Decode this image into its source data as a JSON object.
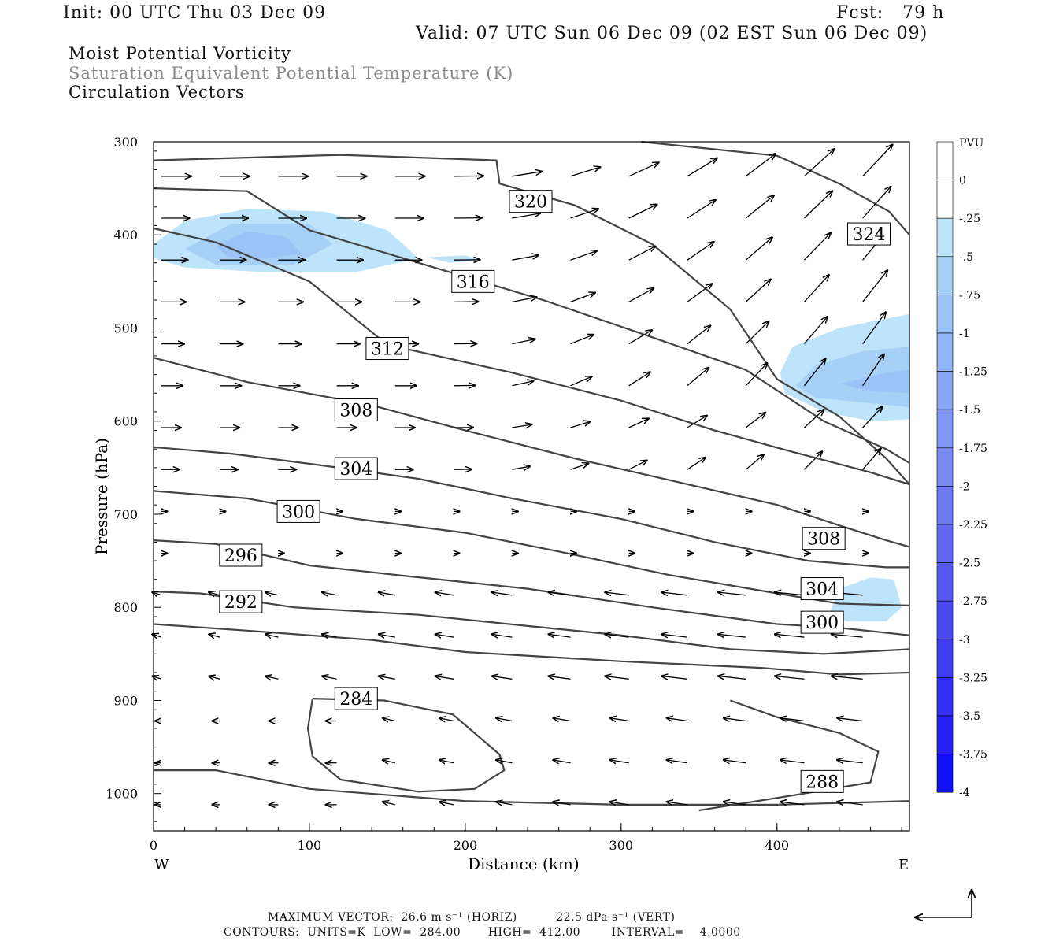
{
  "header": {
    "init": "Init: 00 UTC Thu 03 Dec 09",
    "fcst": "Fcst:   79 h",
    "valid": "Valid: 07 UTC Sun 06 Dec 09 (02 EST Sun 06 Dec 09)"
  },
  "fields": {
    "mpv": "Moist Potential Vorticity",
    "theta": "Saturation Equivalent Potential Temperature (K)",
    "vectors": "Circulation Vectors"
  },
  "chart_data": {
    "type": "contour",
    "xlabel": "Distance (km)",
    "ylabel": "Pressure (hPa)",
    "xlim": [
      0,
      485
    ],
    "ylim": [
      1040,
      300
    ],
    "x_ticks": [
      0,
      100,
      200,
      300,
      400
    ],
    "y_ticks": [
      300,
      400,
      500,
      600,
      700,
      800,
      900,
      1000
    ],
    "x_end_labels": {
      "left": "W",
      "right": "E"
    },
    "colorbar": {
      "title": "PVU",
      "levels": [
        "0",
        "-.25",
        "-.5",
        "-.75",
        "-1",
        "-1.25",
        "-1.5",
        "-1.75",
        "-2",
        "-2.25",
        "-2.5",
        "-2.75",
        "-3",
        "-3.25",
        "-3.5",
        "-3.75",
        "-4"
      ],
      "colors": [
        "#ffffff",
        "#ffffff",
        "#bde4fa",
        "#a7d0f7",
        "#9cc3f7",
        "#92b5f7",
        "#8aa7f5",
        "#8197f5",
        "#7a8af5",
        "#6e7bf5",
        "#626af5",
        "#5659f5",
        "#4a4af5",
        "#3e3cf5",
        "#322ef5",
        "#2620f5",
        "#1010f8"
      ]
    },
    "contour_labels": [
      {
        "text": "320",
        "x": 242,
        "p": 364
      },
      {
        "text": "324",
        "x": 459,
        "p": 399
      },
      {
        "text": "316",
        "x": 205,
        "p": 450
      },
      {
        "text": "312",
        "x": 150,
        "p": 522
      },
      {
        "text": "308",
        "x": 130,
        "p": 588
      },
      {
        "text": "304",
        "x": 130,
        "p": 651
      },
      {
        "text": "300",
        "x": 93,
        "p": 697
      },
      {
        "text": "296",
        "x": 56,
        "p": 744
      },
      {
        "text": "292",
        "x": 56,
        "p": 794
      },
      {
        "text": "284",
        "x": 130,
        "p": 898
      },
      {
        "text": "308",
        "x": 430,
        "p": 726
      },
      {
        "text": "304",
        "x": 429,
        "p": 780
      },
      {
        "text": "300",
        "x": 429,
        "p": 816
      },
      {
        "text": "288",
        "x": 429,
        "p": 987
      }
    ],
    "contours": [
      {
        "level": 324,
        "points": [
          [
            313,
            300
          ],
          [
            400,
            315
          ],
          [
            440,
            345
          ],
          [
            472,
            375
          ],
          [
            485,
            400
          ]
        ]
      },
      {
        "level": 320,
        "points": [
          [
            0,
            320
          ],
          [
            120,
            314
          ],
          [
            220,
            320
          ],
          [
            222,
            345
          ],
          [
            270,
            368
          ],
          [
            320,
            410
          ],
          [
            370,
            480
          ],
          [
            400,
            555
          ],
          [
            440,
            595
          ],
          [
            470,
            640
          ],
          [
            485,
            668
          ]
        ]
      },
      {
        "level": 316,
        "points": [
          [
            0,
            350
          ],
          [
            60,
            353
          ],
          [
            100,
            395
          ],
          [
            160,
            425
          ],
          [
            250,
            470
          ],
          [
            320,
            510
          ],
          [
            380,
            545
          ],
          [
            430,
            600
          ],
          [
            470,
            630
          ],
          [
            485,
            645
          ]
        ]
      },
      {
        "level": 312,
        "points": [
          [
            0,
            393
          ],
          [
            40,
            408
          ],
          [
            100,
            450
          ],
          [
            150,
            518
          ],
          [
            230,
            548
          ],
          [
            300,
            578
          ],
          [
            360,
            610
          ],
          [
            410,
            633
          ],
          [
            460,
            655
          ],
          [
            485,
            668
          ]
        ]
      },
      {
        "level": 308,
        "points": [
          [
            0,
            532
          ],
          [
            60,
            558
          ],
          [
            140,
            583
          ],
          [
            200,
            610
          ],
          [
            270,
            640
          ],
          [
            330,
            663
          ],
          [
            400,
            690
          ],
          [
            440,
            712
          ],
          [
            470,
            728
          ],
          [
            485,
            735
          ]
        ]
      },
      {
        "level": 304,
        "points": [
          [
            0,
            628
          ],
          [
            50,
            635
          ],
          [
            110,
            648
          ],
          [
            170,
            662
          ],
          [
            230,
            683
          ],
          [
            300,
            705
          ],
          [
            360,
            730
          ],
          [
            420,
            750
          ],
          [
            470,
            757
          ],
          [
            485,
            757
          ]
        ]
      },
      {
        "level": 300,
        "points": [
          [
            0,
            675
          ],
          [
            60,
            683
          ],
          [
            130,
            705
          ],
          [
            200,
            720
          ],
          [
            260,
            740
          ],
          [
            330,
            765
          ],
          [
            400,
            785
          ],
          [
            440,
            796
          ],
          [
            485,
            798
          ]
        ]
      },
      {
        "level": 296,
        "points": [
          [
            0,
            728
          ],
          [
            40,
            732
          ],
          [
            100,
            755
          ],
          [
            160,
            766
          ],
          [
            240,
            780
          ],
          [
            320,
            800
          ],
          [
            400,
            818
          ],
          [
            440,
            822
          ],
          [
            485,
            830
          ]
        ]
      },
      {
        "level": 292,
        "points": [
          [
            0,
            783
          ],
          [
            30,
            785
          ],
          [
            90,
            800
          ],
          [
            170,
            808
          ],
          [
            240,
            820
          ],
          [
            300,
            830
          ],
          [
            370,
            845
          ],
          [
            430,
            850
          ],
          [
            485,
            845
          ]
        ]
      },
      {
        "level": 288,
        "points": [
          [
            0,
            818
          ],
          [
            60,
            825
          ],
          [
            140,
            835
          ],
          [
            200,
            848
          ],
          [
            300,
            858
          ],
          [
            390,
            865
          ],
          [
            440,
            872
          ],
          [
            485,
            870
          ]
        ]
      },
      {
        "level": 288,
        "points": [
          [
            350,
            1018
          ],
          [
            410,
            1002
          ],
          [
            460,
            988
          ],
          [
            465,
            955
          ],
          [
            440,
            935
          ],
          [
            400,
            918
          ],
          [
            370,
            900
          ]
        ]
      },
      {
        "level": 284,
        "points": [
          [
            102,
            898
          ],
          [
            148,
            900
          ],
          [
            192,
            915
          ],
          [
            222,
            958
          ],
          [
            225,
            975
          ],
          [
            206,
            995
          ],
          [
            170,
            998
          ],
          [
            120,
            985
          ],
          [
            102,
            960
          ],
          [
            99,
            930
          ],
          [
            102,
            898
          ]
        ]
      },
      {
        "level": 292,
        "points": [
          [
            0,
            975
          ],
          [
            40,
            975
          ],
          [
            100,
            995
          ],
          [
            200,
            1008
          ],
          [
            300,
            1012
          ],
          [
            400,
            1012
          ],
          [
            485,
            1008
          ]
        ]
      }
    ],
    "shaded_regions": [
      {
        "pvu": -0.5,
        "points": [
          [
            0,
            410
          ],
          [
            20,
            385
          ],
          [
            60,
            372
          ],
          [
            110,
            375
          ],
          [
            150,
            395
          ],
          [
            170,
            425
          ],
          [
            130,
            440
          ],
          [
            70,
            440
          ],
          [
            20,
            435
          ],
          [
            0,
            425
          ]
        ]
      },
      {
        "pvu": -0.75,
        "points": [
          [
            20,
            415
          ],
          [
            50,
            388
          ],
          [
            100,
            388
          ],
          [
            115,
            410
          ],
          [
            90,
            432
          ],
          [
            40,
            432
          ]
        ]
      },
      {
        "pvu": -1.0,
        "points": [
          [
            40,
            412
          ],
          [
            60,
            396
          ],
          [
            85,
            402
          ],
          [
            95,
            420
          ],
          [
            70,
            426
          ],
          [
            48,
            424
          ]
        ]
      },
      {
        "pvu": -0.5,
        "points": [
          [
            175,
            424
          ],
          [
            200,
            422
          ],
          [
            210,
            427
          ],
          [
            190,
            430
          ]
        ]
      },
      {
        "pvu": -0.5,
        "points": [
          [
            402,
            548
          ],
          [
            410,
            520
          ],
          [
            440,
            500
          ],
          [
            470,
            490
          ],
          [
            485,
            485
          ],
          [
            485,
            598
          ],
          [
            460,
            600
          ],
          [
            430,
            590
          ],
          [
            405,
            570
          ]
        ]
      },
      {
        "pvu": -0.75,
        "points": [
          [
            412,
            562
          ],
          [
            425,
            540
          ],
          [
            455,
            525
          ],
          [
            485,
            520
          ],
          [
            485,
            585
          ],
          [
            455,
            580
          ],
          [
            425,
            575
          ]
        ]
      },
      {
        "pvu": -1.0,
        "points": [
          [
            440,
            560
          ],
          [
            470,
            548
          ],
          [
            485,
            545
          ],
          [
            485,
            570
          ],
          [
            460,
            568
          ]
        ]
      },
      {
        "pvu": -0.5,
        "points": [
          [
            433,
            810
          ],
          [
            440,
            780
          ],
          [
            460,
            768
          ],
          [
            475,
            770
          ],
          [
            480,
            800
          ],
          [
            470,
            815
          ],
          [
            445,
            815
          ]
        ]
      }
    ]
  },
  "footer": {
    "max_vector": "MAXIMUM VECTOR:  26.6 m s⁻¹ (HORIZ)          22.5 dPa s⁻¹ (VERT)",
    "contours": "CONTOURS:  UNITS=K  LOW=  284.00       HIGH=  412.00        INTERVAL=    4.0000"
  }
}
